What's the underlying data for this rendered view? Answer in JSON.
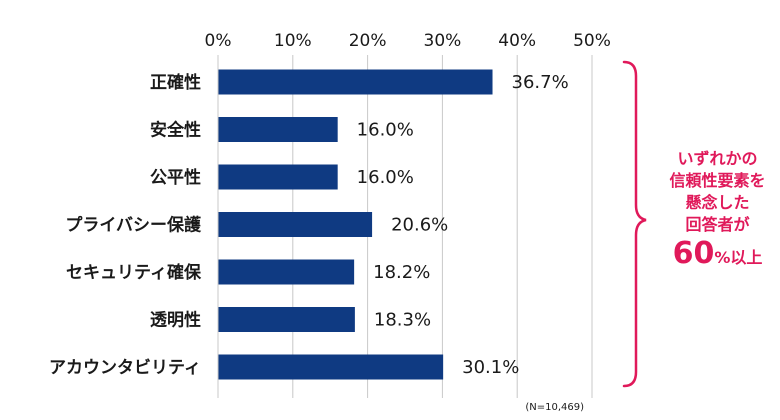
{
  "chart_data": {
    "type": "bar",
    "orientation": "horizontal",
    "categories": [
      "正確性",
      "安全性",
      "公平性",
      "プライバシー保護",
      "セキュリティ確保",
      "透明性",
      "アカウンタビリティ"
    ],
    "values": [
      36.7,
      16.0,
      16.0,
      20.6,
      18.2,
      18.3,
      30.1
    ],
    "value_labels": [
      "36.7%",
      "16.0%",
      "16.0%",
      "20.6%",
      "18.2%",
      "18.3%",
      "30.1%"
    ],
    "x_ticks": [
      "0%",
      "10%",
      "20%",
      "30%",
      "40%",
      "50%"
    ],
    "xlim": [
      0,
      50
    ],
    "axis_position": "top",
    "grid": true,
    "bar_color": "#0f3a82",
    "note": "(N=10,469)"
  },
  "callout": {
    "lines": [
      "いずれかの",
      "信頼性要素を",
      "懸念した",
      "回答者が"
    ],
    "big_value": "60",
    "big_suffix": "%以上",
    "color": "#e0195a"
  }
}
